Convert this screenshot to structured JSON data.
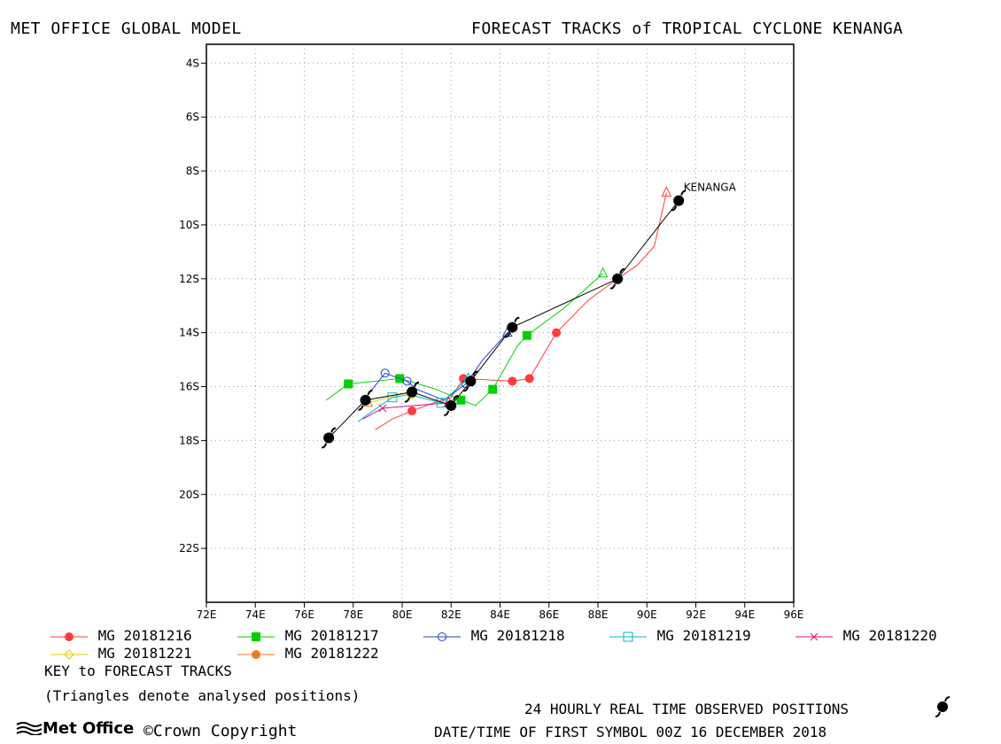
{
  "header": {
    "left": "MET OFFICE GLOBAL MODEL",
    "right": "FORECAST TRACKS of TROPICAL CYCLONE KENANGA"
  },
  "chart_data": {
    "type": "line",
    "xlim": [
      72,
      96
    ],
    "ylim": [
      -24,
      -3.3
    ],
    "grid": true,
    "x_ticks": [
      {
        "v": 72,
        "l": "72E"
      },
      {
        "v": 74,
        "l": "74E"
      },
      {
        "v": 76,
        "l": "76E"
      },
      {
        "v": 78,
        "l": "78E"
      },
      {
        "v": 80,
        "l": "80E"
      },
      {
        "v": 82,
        "l": "82E"
      },
      {
        "v": 84,
        "l": "84E"
      },
      {
        "v": 86,
        "l": "86E"
      },
      {
        "v": 88,
        "l": "88E"
      },
      {
        "v": 90,
        "l": "90E"
      },
      {
        "v": 92,
        "l": "92E"
      },
      {
        "v": 94,
        "l": "94E"
      },
      {
        "v": 96,
        "l": "96E"
      }
    ],
    "y_ticks": [
      {
        "v": -4,
        "l": "4S"
      },
      {
        "v": -6,
        "l": "6S"
      },
      {
        "v": -8,
        "l": "8S"
      },
      {
        "v": -10,
        "l": "10S"
      },
      {
        "v": -12,
        "l": "12S"
      },
      {
        "v": -14,
        "l": "14S"
      },
      {
        "v": -16,
        "l": "16S"
      },
      {
        "v": -18,
        "l": "18S"
      },
      {
        "v": -20,
        "l": "20S"
      },
      {
        "v": -22,
        "l": "22S"
      }
    ],
    "storm_label": {
      "text": "KENANGA",
      "x": 91.5,
      "y": -8.6
    },
    "observed": {
      "color": "#000000",
      "points": [
        [
          91.3,
          -9.1
        ],
        [
          88.8,
          -12.0
        ],
        [
          84.5,
          -13.8
        ],
        [
          82.8,
          -15.8
        ],
        [
          82.0,
          -16.7
        ],
        [
          80.4,
          -16.2
        ],
        [
          78.5,
          -16.5
        ],
        [
          77.0,
          -17.9
        ]
      ]
    },
    "series": [
      {
        "name": "MG 20181216",
        "color": "#ff3c3c",
        "marker": "circle-filled",
        "analysed": [
          90.8,
          -8.8
        ],
        "points": [
          [
            90.8,
            -8.8
          ],
          [
            90.3,
            -10.8
          ],
          [
            89.6,
            -11.5
          ],
          [
            88.8,
            -12.0
          ],
          [
            87.6,
            -12.8
          ],
          [
            86.3,
            -14.0
          ],
          [
            85.2,
            -15.7
          ],
          [
            84.5,
            -15.8
          ],
          [
            82.5,
            -15.7
          ],
          [
            82.0,
            -16.4
          ],
          [
            81.3,
            -16.6
          ],
          [
            80.4,
            -16.9
          ],
          [
            79.6,
            -17.2
          ],
          [
            78.9,
            -17.6
          ]
        ],
        "markers": [
          [
            88.8,
            -12.0
          ],
          [
            86.3,
            -14.0
          ],
          [
            85.2,
            -15.7
          ],
          [
            84.5,
            -15.8
          ],
          [
            82.5,
            -15.7
          ],
          [
            80.4,
            -16.9
          ]
        ]
      },
      {
        "name": "MG 20181217",
        "color": "#00d000",
        "marker": "square-filled",
        "analysed": [
          88.2,
          -11.8
        ],
        "points": [
          [
            88.2,
            -11.8
          ],
          [
            86.6,
            -13.1
          ],
          [
            85.1,
            -14.1
          ],
          [
            84.7,
            -14.5
          ],
          [
            83.7,
            -16.1
          ],
          [
            83.0,
            -16.7
          ],
          [
            82.4,
            -16.5
          ],
          [
            81.4,
            -16.1
          ],
          [
            79.9,
            -15.7
          ],
          [
            78.9,
            -15.8
          ],
          [
            77.8,
            -15.9
          ],
          [
            76.9,
            -16.5
          ]
        ],
        "markers": [
          [
            85.1,
            -14.1
          ],
          [
            83.7,
            -16.1
          ],
          [
            82.4,
            -16.5
          ],
          [
            79.9,
            -15.7
          ],
          [
            77.8,
            -15.9
          ]
        ]
      },
      {
        "name": "MG 20181218",
        "color": "#2040d0",
        "marker": "circle-open",
        "analysed": [
          84.3,
          -14.0
        ],
        "points": [
          [
            84.3,
            -14.0
          ],
          [
            83.3,
            -15.0
          ],
          [
            82.6,
            -15.9
          ],
          [
            81.7,
            -16.5
          ],
          [
            80.6,
            -16.1
          ],
          [
            80.2,
            -15.8
          ],
          [
            79.3,
            -15.5
          ],
          [
            78.6,
            -16.3
          ]
        ],
        "markers": [
          [
            82.6,
            -15.9
          ],
          [
            80.2,
            -15.8
          ],
          [
            79.3,
            -15.5
          ]
        ]
      },
      {
        "name": "MG 20181219",
        "color": "#00b8c8",
        "marker": "square-open",
        "analysed": [
          82.7,
          -15.7
        ],
        "points": [
          [
            82.7,
            -15.7
          ],
          [
            81.6,
            -16.6
          ],
          [
            80.3,
            -16.3
          ],
          [
            79.6,
            -16.4
          ],
          [
            78.8,
            -16.9
          ],
          [
            78.2,
            -17.3
          ]
        ],
        "markers": [
          [
            81.6,
            -16.6
          ],
          [
            79.6,
            -16.4
          ]
        ]
      },
      {
        "name": "MG 20181220",
        "color": "#e0108c",
        "marker": "x",
        "analysed": [
          81.9,
          -16.6
        ],
        "points": [
          [
            81.9,
            -16.6
          ],
          [
            80.5,
            -16.7
          ],
          [
            79.2,
            -16.8
          ],
          [
            78.4,
            -17.2
          ]
        ],
        "markers": [
          [
            79.2,
            -16.8
          ]
        ]
      },
      {
        "name": "MG 20181221",
        "color": "#e0d000",
        "marker": "diamond-open",
        "analysed": [
          80.3,
          -16.2
        ],
        "points": [
          [
            80.3,
            -16.2
          ],
          [
            79.5,
            -16.4
          ],
          [
            78.6,
            -16.6
          ]
        ],
        "markers": [
          [
            80.4,
            -16.3
          ]
        ]
      },
      {
        "name": "MG 20181222",
        "color": "#f07820",
        "marker": "circle-filled",
        "analysed": [
          78.6,
          -16.6
        ],
        "points": [
          [
            78.6,
            -16.6
          ],
          [
            78.5,
            -16.5
          ]
        ],
        "markers": [
          [
            78.5,
            -16.5
          ]
        ]
      }
    ]
  },
  "key": {
    "title": "KEY to FORECAST TRACKS",
    "note": "(Triangles denote analysed positions)"
  },
  "footer": {
    "observed_label": "24 HOURLY REAL TIME OBSERVED POSITIONS",
    "first_symbol": "DATE/TIME OF FIRST SYMBOL 00Z 16 DECEMBER 2018",
    "logo_text": "Met Office",
    "copyright": "©Crown Copyright"
  }
}
